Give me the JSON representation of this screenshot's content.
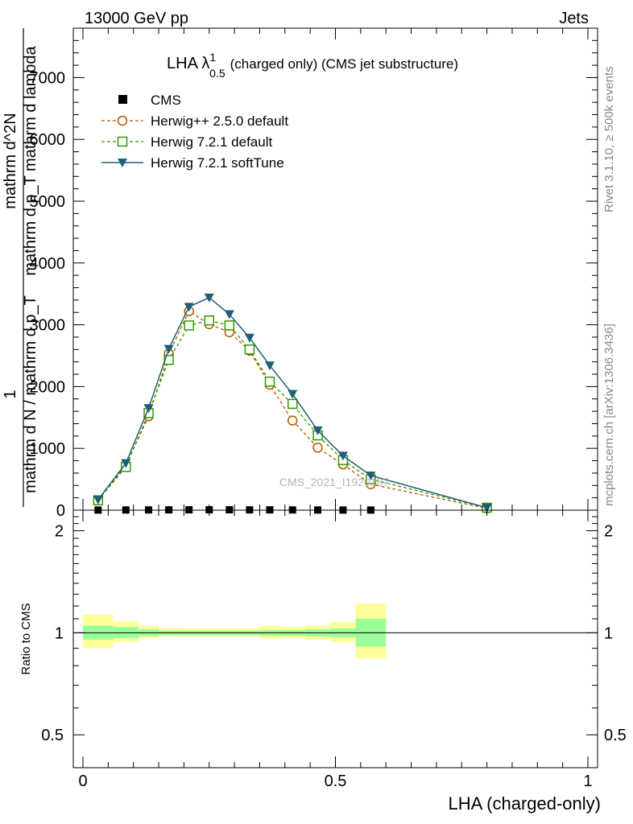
{
  "header": {
    "energy_label": "13000 GeV pp",
    "category_label": "Jets"
  },
  "side_text": {
    "generator_info": "Rivet 3.1.10, ≥ 500k events",
    "source_info": "mcplots.cern.ch [arXiv:1306.3436]"
  },
  "watermark": "CMS_2021_I1920187",
  "chart_data": [
    {
      "type": "line",
      "title": "LHA λ",
      "title_sup": "1",
      "title_sub": "0.5",
      "title_suffix": "(charged only) (CMS jet substructure)",
      "xlabel": "LHA (charged-only)",
      "ylabel_lines": [
        "1",
        "mathrm d N / mathrm d p_T",
        "mathrm d^2N",
        "mathrm d p_T mathrm d lambda"
      ],
      "xlim": [
        0,
        1
      ],
      "ylim": [
        0,
        7800
      ],
      "y_ticks": [
        "0",
        "1000",
        "2000",
        "3000",
        "4000",
        "5000",
        "6000",
        "7000"
      ],
      "x_ticks": [
        "0",
        "0.5",
        "1"
      ],
      "legend_position": "top-left",
      "series": [
        {
          "name": "CMS",
          "style": "square",
          "color": "#000000",
          "x": [
            0.03,
            0.085,
            0.13,
            0.17,
            0.21,
            0.25,
            0.29,
            0.33,
            0.37,
            0.415,
            0.465,
            0.515,
            0.57
          ],
          "y": [
            2,
            3,
            4,
            5,
            6,
            6,
            6,
            5,
            5,
            4,
            3,
            2,
            2
          ]
        },
        {
          "name": "Herwig++ 2.5.0 default",
          "style": "open-circle-dashed",
          "color": "#b35900",
          "x": [
            0.03,
            0.085,
            0.13,
            0.17,
            0.21,
            0.25,
            0.29,
            0.33,
            0.37,
            0.415,
            0.465,
            0.515,
            0.57,
            0.8
          ],
          "y": [
            160,
            730,
            1520,
            2530,
            3220,
            3010,
            2880,
            2580,
            2030,
            1450,
            1010,
            740,
            420,
            30
          ]
        },
        {
          "name": "Herwig 7.2.1 default",
          "style": "open-square-dashed",
          "color": "#339900",
          "x": [
            0.03,
            0.085,
            0.13,
            0.17,
            0.21,
            0.25,
            0.29,
            0.33,
            0.37,
            0.415,
            0.465,
            0.515,
            0.57,
            0.8
          ],
          "y": [
            160,
            700,
            1570,
            2430,
            2990,
            3070,
            2990,
            2600,
            2080,
            1720,
            1210,
            810,
            500,
            40
          ]
        },
        {
          "name": "Herwig 7.2.1 softTune",
          "style": "filled-triangle-down-solid",
          "color": "#1f5f77",
          "x": [
            0.03,
            0.085,
            0.13,
            0.17,
            0.21,
            0.25,
            0.29,
            0.33,
            0.37,
            0.415,
            0.465,
            0.515,
            0.57,
            0.8
          ],
          "y": [
            170,
            760,
            1650,
            2610,
            3290,
            3440,
            3170,
            2790,
            2340,
            1880,
            1290,
            880,
            560,
            40
          ]
        }
      ]
    },
    {
      "type": "area",
      "ylabel": "Ratio to CMS",
      "xlim": [
        0,
        1
      ],
      "ylim": [
        0.4,
        2.3
      ],
      "y_scale": "log",
      "y_ticks": [
        "0.5",
        "1",
        "2"
      ],
      "reference": 1,
      "bins": [
        0,
        0.06,
        0.11,
        0.15,
        0.19,
        0.23,
        0.27,
        0.31,
        0.35,
        0.39,
        0.44,
        0.49,
        0.54,
        0.6,
        1.0
      ],
      "band_1sigma_upper": [
        1.05,
        1.04,
        1.025,
        1.015,
        1.015,
        1.015,
        1.015,
        1.015,
        1.02,
        1.02,
        1.025,
        1.03,
        1.1
      ],
      "band_1sigma_lower": [
        0.955,
        0.965,
        0.978,
        0.985,
        0.985,
        0.985,
        0.985,
        0.985,
        0.98,
        0.98,
        0.975,
        0.97,
        0.91
      ],
      "band_2sigma_upper": [
        1.13,
        1.08,
        1.05,
        1.035,
        1.03,
        1.03,
        1.03,
        1.03,
        1.05,
        1.04,
        1.05,
        1.075,
        1.22
      ],
      "band_2sigma_lower": [
        0.9,
        0.94,
        0.965,
        0.975,
        0.975,
        0.975,
        0.975,
        0.975,
        0.96,
        0.965,
        0.955,
        0.94,
        0.84
      ],
      "band_colors": {
        "inner": "#99ff99",
        "outer": "#ffff99"
      }
    }
  ]
}
